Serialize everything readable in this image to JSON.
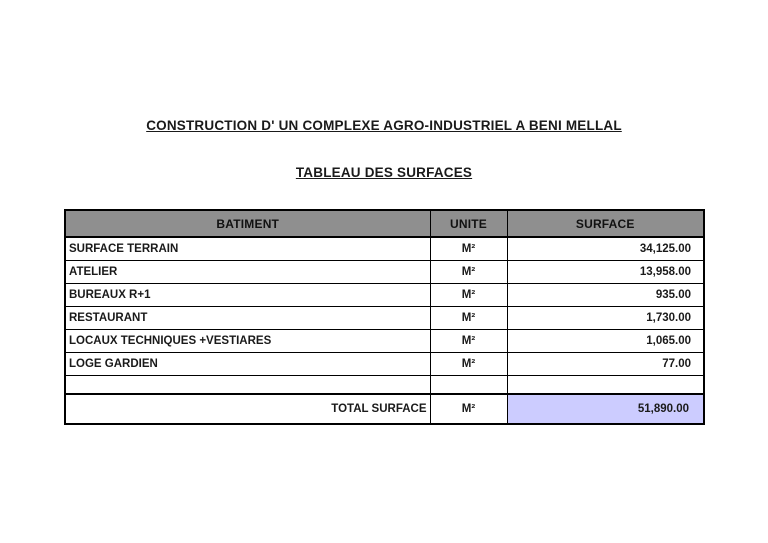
{
  "page": {
    "title": "CONSTRUCTION D' UN COMPLEXE AGRO-INDUSTRIEL A BENI MELLAL",
    "subtitle": "TABLEAU DES SURFACES"
  },
  "table": {
    "headers": [
      "BATIMENT",
      "UNITE",
      "SURFACE"
    ],
    "rows": [
      {
        "batiment": "SURFACE TERRAIN",
        "unite": "M²",
        "surface": "34,125.00"
      },
      {
        "batiment": "ATELIER",
        "unite": "M²",
        "surface": "13,958.00"
      },
      {
        "batiment": "BUREAUX R+1",
        "unite": "M²",
        "surface": "935.00"
      },
      {
        "batiment": "RESTAURANT",
        "unite": "M²",
        "surface": "1,730.00"
      },
      {
        "batiment": "LOCAUX TECHNIQUES +VESTIARES",
        "unite": "M²",
        "surface": "1,065.00"
      },
      {
        "batiment": "LOGE GARDIEN",
        "unite": "M²",
        "surface": "77.00"
      }
    ],
    "total": {
      "label": "TOTAL SURFACE",
      "unite": "M²",
      "surface": "51,890.00"
    }
  },
  "colors": {
    "header_bg": "#8f8f8f",
    "total_highlight_bg": "#ccccff",
    "border": "#000000",
    "page_bg": "#ffffff"
  }
}
